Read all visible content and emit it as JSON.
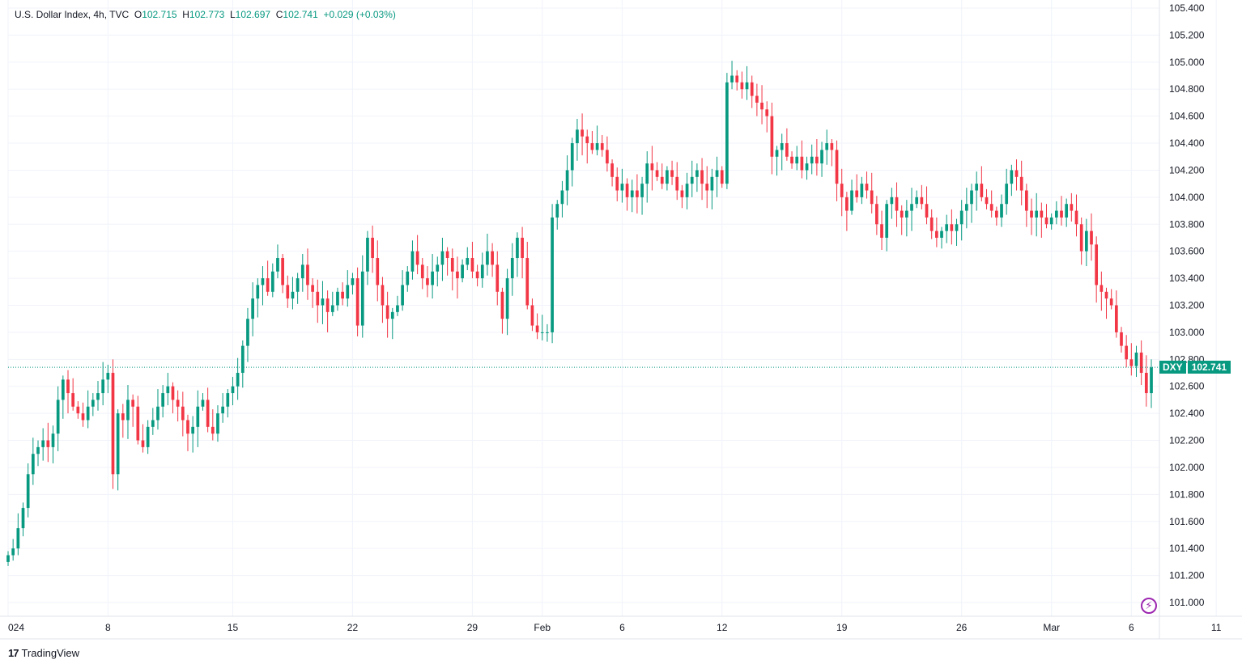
{
  "legend": {
    "symbol_name": "U.S. Dollar Index, 4h, TVC",
    "open_label": "O",
    "open": "102.715",
    "high_label": "H",
    "high": "102.773",
    "low_label": "L",
    "low": "102.697",
    "close_label": "C",
    "close": "102.741",
    "change": "+0.029 (+0.03%)"
  },
  "price_label": {
    "symbol": "DXY",
    "price": "102.741"
  },
  "brand": {
    "logo_text": "17",
    "name": "TradingView"
  },
  "icons": {
    "alert": "lightning-bolt-icon"
  },
  "colors": {
    "up": "#089981",
    "down": "#f23645",
    "grid": "#f0f3fa",
    "axis": "#e0e3eb",
    "accent": "#9c27b0"
  },
  "chart_data": {
    "type": "candlestick",
    "title": "U.S. Dollar Index, 4h, TVC",
    "ylim": [
      100.9,
      105.45
    ],
    "y_ticks": [
      "105.400",
      "105.200",
      "105.000",
      "104.800",
      "104.600",
      "104.400",
      "104.200",
      "104.000",
      "103.800",
      "103.600",
      "103.400",
      "103.200",
      "103.000",
      "102.800",
      "102.600",
      "102.400",
      "102.200",
      "102.000",
      "101.800",
      "101.600",
      "101.400",
      "101.200",
      "101.000"
    ],
    "x_ticks": [
      {
        "label": "024",
        "index": 0
      },
      {
        "label": "8",
        "index": 20
      },
      {
        "label": "15",
        "index": 45
      },
      {
        "label": "22",
        "index": 69
      },
      {
        "label": "29",
        "index": 93
      },
      {
        "label": "Feb",
        "index": 107
      },
      {
        "label": "6",
        "index": 123
      },
      {
        "label": "12",
        "index": 143
      },
      {
        "label": "19",
        "index": 167
      },
      {
        "label": "26",
        "index": 191
      },
      {
        "label": "Mar",
        "index": 209
      },
      {
        "label": "6",
        "index": 225
      },
      {
        "label": "11",
        "index": 242
      }
    ],
    "last_price": 102.741,
    "closes": [
      101.35,
      101.4,
      101.55,
      101.7,
      101.95,
      102.1,
      102.15,
      102.2,
      102.15,
      102.25,
      102.5,
      102.65,
      102.55,
      102.45,
      102.4,
      102.35,
      102.45,
      102.5,
      102.55,
      102.65,
      102.7,
      101.95,
      102.4,
      102.35,
      102.5,
      102.45,
      102.2,
      102.15,
      102.3,
      102.35,
      102.45,
      102.55,
      102.6,
      102.5,
      102.45,
      102.35,
      102.25,
      102.3,
      102.45,
      102.5,
      102.3,
      102.25,
      102.4,
      102.45,
      102.55,
      102.6,
      102.7,
      102.9,
      103.1,
      103.25,
      103.35,
      103.4,
      103.3,
      103.45,
      103.55,
      103.35,
      103.25,
      103.3,
      103.4,
      103.5,
      103.35,
      103.3,
      103.2,
      103.25,
      103.15,
      103.2,
      103.3,
      103.25,
      103.35,
      103.4,
      103.05,
      103.45,
      103.7,
      103.55,
      103.35,
      103.2,
      103.1,
      103.15,
      103.2,
      103.35,
      103.45,
      103.6,
      103.5,
      103.4,
      103.35,
      103.45,
      103.5,
      103.6,
      103.55,
      103.45,
      103.4,
      103.5,
      103.55,
      103.45,
      103.4,
      103.5,
      103.6,
      103.5,
      103.3,
      103.1,
      103.4,
      103.55,
      103.7,
      103.55,
      103.2,
      103.05,
      103.0,
      103.0,
      103.0,
      103.85,
      103.95,
      104.05,
      104.2,
      104.4,
      104.5,
      104.45,
      104.4,
      104.35,
      104.4,
      104.35,
      104.25,
      104.15,
      104.05,
      104.1,
      104.0,
      104.05,
      104.0,
      104.1,
      104.25,
      104.2,
      104.15,
      104.1,
      104.2,
      104.15,
      104.05,
      104.0,
      104.1,
      104.15,
      104.2,
      104.1,
      104.05,
      104.15,
      104.2,
      104.1,
      104.85,
      104.9,
      104.85,
      104.8,
      104.85,
      104.75,
      104.7,
      104.65,
      104.6,
      104.3,
      104.35,
      104.4,
      104.3,
      104.25,
      104.3,
      104.2,
      104.25,
      104.3,
      104.25,
      104.35,
      104.4,
      104.35,
      104.1,
      104.0,
      103.9,
      104.05,
      104.0,
      104.1,
      104.05,
      103.95,
      103.8,
      103.7,
      103.95,
      104.0,
      103.9,
      103.85,
      103.9,
      103.95,
      104.0,
      103.95,
      103.85,
      103.75,
      103.7,
      103.75,
      103.8,
      103.75,
      103.8,
      103.9,
      103.95,
      104.05,
      104.1,
      104.0,
      103.95,
      103.9,
      103.85,
      103.95,
      104.1,
      104.2,
      104.15,
      104.05,
      103.9,
      103.85,
      103.9,
      103.85,
      103.8,
      103.85,
      103.9,
      103.85,
      103.95,
      103.9,
      103.8,
      103.6,
      103.75,
      103.65,
      103.35,
      103.3,
      103.25,
      103.2,
      103.0,
      102.9,
      102.8,
      102.75,
      102.85,
      102.7,
      102.55,
      102.74
    ]
  }
}
